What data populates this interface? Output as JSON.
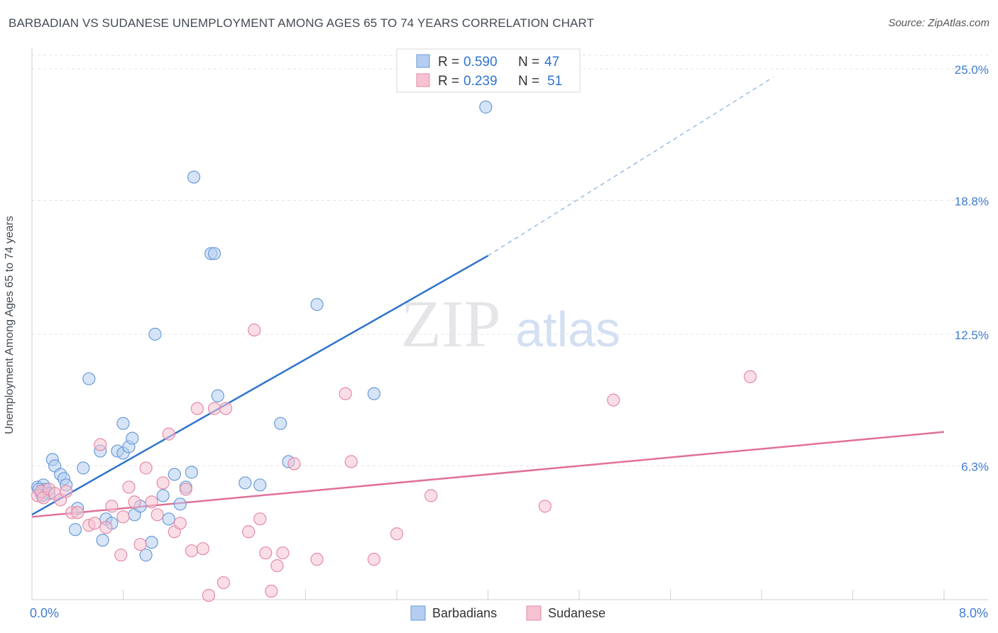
{
  "title": "BARBADIAN VS SUDANESE UNEMPLOYMENT AMONG AGES 65 TO 74 YEARS CORRELATION CHART",
  "source": "Source: ZipAtlas.com",
  "watermark": {
    "zip": "ZIP",
    "atlas": "atlas"
  },
  "chart_data": {
    "type": "scatter",
    "ylabel": "Unemployment Among Ages 65 to 74 years",
    "xlim": [
      0,
      8
    ],
    "ylim": [
      0,
      25
    ],
    "x_ticks": [
      "0.0%",
      "8.0%"
    ],
    "y_ticks": [
      {
        "value": 6.3,
        "label": "6.3%"
      },
      {
        "value": 12.5,
        "label": "12.5%"
      },
      {
        "value": 18.8,
        "label": "18.8%"
      },
      {
        "value": 25.0,
        "label": "25.0%"
      }
    ],
    "grid": true,
    "legend_position": "top-center",
    "series": [
      {
        "name": "Barbadians",
        "color": "#6a9bd8",
        "fill": "#b5cdf0",
        "line_color": "#2f74cf",
        "r_label": "R =",
        "r_value": "0.590",
        "n_label": "N =",
        "n_value": "47",
        "trend": {
          "x0": 0,
          "y0": 4.0,
          "x1": 4.0,
          "y1": 16.2,
          "x_dash_end": 6.5,
          "y_dash_end": 24.6
        },
        "points": [
          [
            0.05,
            5.3
          ],
          [
            0.08,
            5.0
          ],
          [
            0.1,
            5.4
          ],
          [
            0.12,
            5.2
          ],
          [
            0.15,
            5.0
          ],
          [
            0.18,
            6.6
          ],
          [
            0.2,
            6.3
          ],
          [
            0.25,
            5.9
          ],
          [
            0.28,
            5.7
          ],
          [
            0.3,
            5.4
          ],
          [
            0.4,
            4.3
          ],
          [
            0.38,
            3.3
          ],
          [
            0.45,
            6.2
          ],
          [
            0.5,
            10.4
          ],
          [
            0.6,
            7.0
          ],
          [
            0.62,
            2.8
          ],
          [
            0.65,
            3.8
          ],
          [
            0.7,
            3.6
          ],
          [
            0.75,
            7.0
          ],
          [
            0.8,
            6.9
          ],
          [
            0.8,
            8.3
          ],
          [
            0.85,
            7.2
          ],
          [
            0.88,
            7.6
          ],
          [
            0.9,
            4.0
          ],
          [
            0.95,
            4.4
          ],
          [
            1.0,
            2.1
          ],
          [
            1.05,
            2.7
          ],
          [
            1.08,
            12.5
          ],
          [
            1.15,
            4.9
          ],
          [
            1.2,
            3.8
          ],
          [
            1.25,
            5.9
          ],
          [
            1.3,
            4.5
          ],
          [
            1.35,
            5.3
          ],
          [
            1.4,
            6.0
          ],
          [
            1.42,
            19.9
          ],
          [
            1.57,
            16.3
          ],
          [
            1.6,
            16.3
          ],
          [
            1.63,
            9.6
          ],
          [
            1.87,
            5.5
          ],
          [
            2.0,
            5.4
          ],
          [
            2.18,
            8.3
          ],
          [
            2.25,
            6.5
          ],
          [
            2.5,
            13.9
          ],
          [
            3.0,
            9.7
          ],
          [
            3.98,
            23.2
          ],
          [
            0.06,
            5.2
          ],
          [
            0.09,
            4.9
          ]
        ]
      },
      {
        "name": "Sudanese",
        "color": "#e58aa8",
        "fill": "#f6c2d2",
        "line_color": "#e0709a",
        "r_label": "R =",
        "r_value": "0.239",
        "n_label": "N =",
        "n_value": "51",
        "trend": {
          "x0": 0,
          "y0": 3.9,
          "x1": 8.0,
          "y1": 7.9
        },
        "points": [
          [
            0.05,
            4.9
          ],
          [
            0.08,
            5.1
          ],
          [
            0.1,
            4.8
          ],
          [
            0.15,
            5.2
          ],
          [
            0.2,
            5.0
          ],
          [
            0.25,
            4.7
          ],
          [
            0.3,
            5.1
          ],
          [
            0.35,
            4.1
          ],
          [
            0.4,
            4.1
          ],
          [
            0.5,
            3.5
          ],
          [
            0.55,
            3.6
          ],
          [
            0.6,
            7.3
          ],
          [
            0.65,
            3.4
          ],
          [
            0.7,
            4.4
          ],
          [
            0.78,
            2.1
          ],
          [
            0.8,
            3.9
          ],
          [
            0.85,
            5.3
          ],
          [
            0.9,
            4.6
          ],
          [
            0.95,
            2.6
          ],
          [
            1.0,
            6.2
          ],
          [
            1.05,
            4.6
          ],
          [
            1.1,
            4.0
          ],
          [
            1.15,
            5.5
          ],
          [
            1.2,
            7.8
          ],
          [
            1.25,
            3.2
          ],
          [
            1.3,
            3.6
          ],
          [
            1.35,
            5.2
          ],
          [
            1.4,
            2.3
          ],
          [
            1.45,
            9.0
          ],
          [
            1.5,
            2.4
          ],
          [
            1.55,
            0.2
          ],
          [
            1.6,
            9.0
          ],
          [
            1.68,
            0.8
          ],
          [
            1.7,
            9.0
          ],
          [
            1.9,
            3.2
          ],
          [
            1.95,
            12.7
          ],
          [
            2.0,
            3.8
          ],
          [
            2.05,
            2.2
          ],
          [
            2.1,
            0.4
          ],
          [
            2.15,
            1.6
          ],
          [
            2.2,
            2.2
          ],
          [
            2.3,
            6.4
          ],
          [
            2.5,
            1.9
          ],
          [
            2.75,
            9.7
          ],
          [
            2.8,
            6.5
          ],
          [
            3.0,
            1.9
          ],
          [
            3.2,
            3.1
          ],
          [
            3.5,
            4.9
          ],
          [
            4.5,
            4.4
          ],
          [
            5.1,
            9.4
          ],
          [
            6.3,
            10.5
          ]
        ]
      }
    ]
  }
}
